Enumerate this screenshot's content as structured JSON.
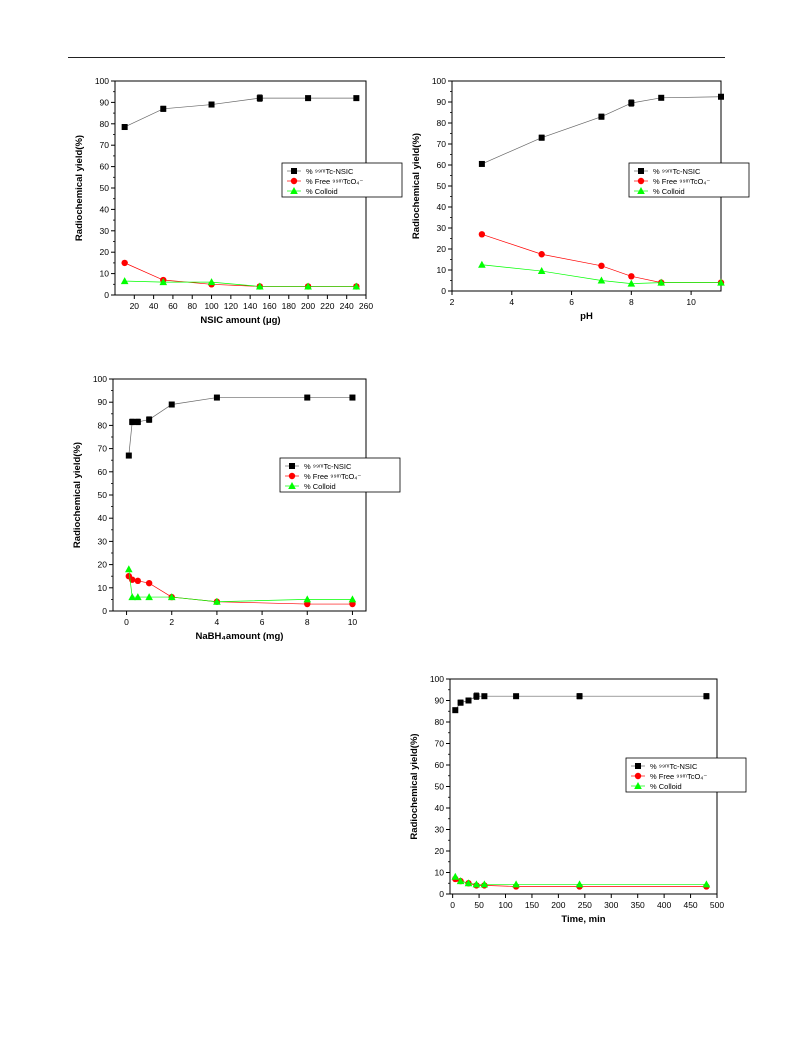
{
  "chart_data": [
    {
      "type": "line",
      "xlabel": "NSIC amount (μg)",
      "ylabel": "Radiochemical yield(%)",
      "xlim": [
        0,
        260
      ],
      "ylim": [
        0,
        100
      ],
      "xticks": [
        20,
        40,
        60,
        80,
        100,
        120,
        140,
        160,
        180,
        200,
        220,
        240,
        260
      ],
      "yticks": [
        0,
        10,
        20,
        30,
        40,
        50,
        60,
        70,
        80,
        90,
        100
      ],
      "legend_position": "middle-right",
      "series": [
        {
          "name": "% ⁹⁹ᵐTc-NSIC",
          "marker": "square",
          "color": "#000000",
          "x": [
            10,
            50,
            100,
            150,
            200,
            250
          ],
          "y": [
            78.5,
            87,
            89,
            92,
            92,
            92
          ],
          "err": [
            1,
            1.2,
            1.2,
            1.5,
            1,
            1
          ]
        },
        {
          "name": "% Free ⁹⁹ᵐTcO₄⁻",
          "marker": "circle",
          "color": "#ff0000",
          "x": [
            10,
            50,
            100,
            150,
            200,
            250
          ],
          "y": [
            15,
            7,
            5,
            4,
            4,
            4
          ],
          "err": [
            0,
            0,
            0,
            0,
            0,
            0
          ]
        },
        {
          "name": "% Colloid",
          "marker": "triangle",
          "color": "#00ff00",
          "x": [
            10,
            50,
            100,
            150,
            200,
            250
          ],
          "y": [
            6.5,
            6,
            6,
            4,
            4,
            4
          ],
          "err": [
            0,
            0,
            0,
            0,
            0,
            0
          ]
        }
      ]
    },
    {
      "type": "line",
      "xlabel": "pH",
      "ylabel": "Radiochemical yield(%)",
      "xlim": [
        2,
        11
      ],
      "ylim": [
        0,
        100
      ],
      "xticks": [
        2,
        4,
        6,
        8,
        10
      ],
      "yticks": [
        0,
        10,
        20,
        30,
        40,
        50,
        60,
        70,
        80,
        90,
        100
      ],
      "legend_position": "middle-right",
      "series": [
        {
          "name": "% ⁹⁹ᵐTc-NSIC",
          "marker": "square",
          "color": "#000000",
          "x": [
            3,
            5,
            7,
            8,
            9,
            11
          ],
          "y": [
            60.5,
            73,
            83,
            89.5,
            92,
            92.5
          ],
          "err": [
            1,
            1.2,
            1.2,
            1.5,
            1,
            1
          ]
        },
        {
          "name": "% Free ⁹⁹ᵐTcO₄⁻",
          "marker": "circle",
          "color": "#ff0000",
          "x": [
            3,
            5,
            7,
            8,
            9,
            11
          ],
          "y": [
            27,
            17.5,
            12,
            7,
            4,
            4
          ],
          "err": [
            0,
            0,
            0,
            0,
            0,
            0
          ]
        },
        {
          "name": "% Colloid",
          "marker": "triangle",
          "color": "#00ff00",
          "x": [
            3,
            5,
            7,
            8,
            9,
            11
          ],
          "y": [
            12.5,
            9.5,
            5,
            3.5,
            4,
            4
          ],
          "err": [
            0,
            0,
            0,
            0,
            0,
            0
          ]
        }
      ]
    },
    {
      "type": "line",
      "xlabel": "NaBH₄amount (mg)",
      "ylabel": "Radiochemical yield(%)",
      "xlim": [
        -0.6,
        10.6
      ],
      "ylim": [
        0,
        100
      ],
      "xticks": [
        0,
        2,
        4,
        6,
        8,
        10
      ],
      "yticks": [
        0,
        10,
        20,
        30,
        40,
        50,
        60,
        70,
        80,
        90,
        100
      ],
      "legend_position": "middle-right",
      "series": [
        {
          "name": "% ⁹⁹ᵐTc-NSIC",
          "marker": "square",
          "color": "#000000",
          "x": [
            0.1,
            0.25,
            0.5,
            1,
            2,
            4,
            8,
            10
          ],
          "y": [
            67,
            81.5,
            81.5,
            82.5,
            89,
            92,
            92,
            92
          ],
          "err": [
            1,
            1.2,
            1.2,
            1.2,
            1,
            1,
            1,
            1
          ]
        },
        {
          "name": "% Free ⁹⁹ᵐTcO₄⁻",
          "marker": "circle",
          "color": "#ff0000",
          "x": [
            0.1,
            0.25,
            0.5,
            1,
            2,
            4,
            8,
            10
          ],
          "y": [
            15,
            13.5,
            13,
            12,
            6,
            4,
            3,
            3
          ],
          "err": [
            0,
            0,
            0,
            0,
            0,
            0,
            0,
            0
          ]
        },
        {
          "name": "% Colloid",
          "marker": "triangle",
          "color": "#00ff00",
          "x": [
            0.1,
            0.25,
            0.5,
            1,
            2,
            4,
            8,
            10
          ],
          "y": [
            18,
            6,
            6,
            6,
            6,
            4,
            5,
            5
          ],
          "err": [
            0,
            0,
            0,
            0,
            0,
            0,
            0,
            0
          ]
        }
      ]
    },
    {
      "type": "line",
      "xlabel": "Time, min",
      "ylabel": "Radiochemical yield(%)",
      "xlim": [
        -5,
        500
      ],
      "ylim": [
        0,
        100
      ],
      "xticks": [
        0,
        50,
        100,
        150,
        200,
        250,
        300,
        350,
        400,
        450,
        500
      ],
      "yticks": [
        0,
        10,
        20,
        30,
        40,
        50,
        60,
        70,
        80,
        90,
        100
      ],
      "legend_position": "middle-right",
      "series": [
        {
          "name": "% ⁹⁹ᵐTc-NSIC",
          "marker": "square",
          "color": "#000000",
          "x": [
            5,
            15,
            30,
            45,
            60,
            120,
            240,
            480
          ],
          "y": [
            85.5,
            89,
            90,
            92,
            92,
            92,
            92,
            92
          ],
          "err": [
            1,
            1.2,
            1.2,
            1.5,
            1,
            1,
            1.2,
            1.2
          ]
        },
        {
          "name": "% Free ⁹⁹ᵐTcO₄⁻",
          "marker": "circle",
          "color": "#ff0000",
          "x": [
            5,
            15,
            30,
            45,
            60,
            120,
            240,
            480
          ],
          "y": [
            7,
            6,
            5,
            4,
            4,
            3.5,
            3.5,
            3.5
          ],
          "err": [
            0,
            0,
            0,
            0,
            0,
            0,
            0,
            0
          ]
        },
        {
          "name": "% Colloid",
          "marker": "triangle",
          "color": "#00ff00",
          "x": [
            5,
            15,
            30,
            45,
            60,
            120,
            240,
            480
          ],
          "y": [
            8,
            6,
            5,
            4.5,
            4.5,
            4.5,
            4.5,
            4.5
          ],
          "err": [
            0,
            0,
            0,
            0,
            0,
            0,
            0,
            0
          ]
        }
      ]
    }
  ]
}
